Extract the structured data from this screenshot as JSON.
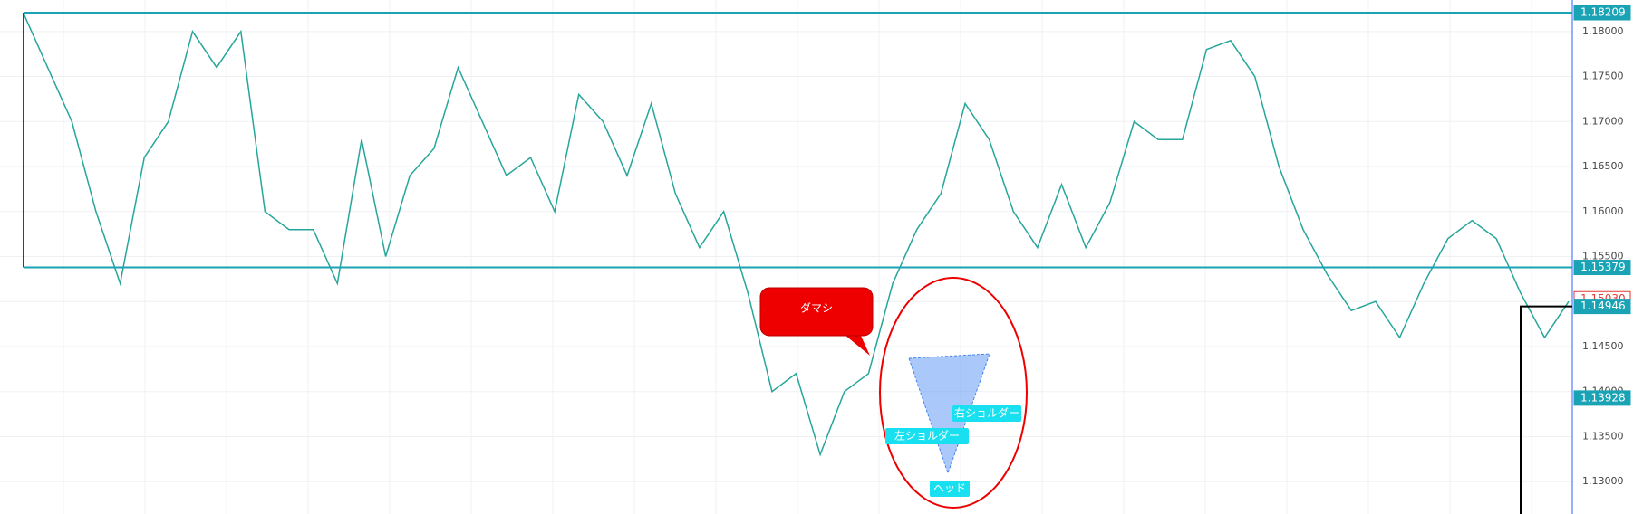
{
  "chart_data": {
    "type": "line",
    "values": [
      1.182,
      1.176,
      1.17,
      1.16,
      1.152,
      1.166,
      1.17,
      1.18,
      1.176,
      1.18,
      1.16,
      1.158,
      1.158,
      1.152,
      1.168,
      1.155,
      1.164,
      1.167,
      1.176,
      1.17,
      1.164,
      1.166,
      1.16,
      1.173,
      1.17,
      1.164,
      1.172,
      1.162,
      1.156,
      1.16,
      1.151,
      1.14,
      1.142,
      1.133,
      1.14,
      1.142,
      1.152,
      1.158,
      1.162,
      1.172,
      1.168,
      1.16,
      1.156,
      1.163,
      1.156,
      1.161,
      1.17,
      1.168,
      1.168,
      1.178,
      1.179,
      1.175,
      1.165,
      1.158,
      1.153,
      1.149,
      1.15,
      1.146,
      1.152,
      1.157,
      1.159,
      1.157,
      1.151,
      1.146,
      1.15
    ],
    "color": "#26a69a",
    "ylim": [
      1.1264,
      1.1835
    ],
    "yticks": [
      {
        "value": 1.13,
        "label": "1.13000"
      },
      {
        "value": 1.135,
        "label": "1.13500"
      },
      {
        "value": 1.14,
        "label": "1.14000"
      },
      {
        "value": 1.145,
        "label": "1.14500"
      },
      {
        "value": 1.15,
        "label": "1.15000"
      },
      {
        "value": 1.155,
        "label": "1.15500"
      },
      {
        "value": 1.16,
        "label": "1.16000"
      },
      {
        "value": 1.165,
        "label": "1.16500"
      },
      {
        "value": 1.17,
        "label": "1.17000"
      },
      {
        "value": 1.175,
        "label": "1.17500"
      },
      {
        "value": 1.18,
        "label": "1.18000"
      }
    ],
    "grid": true,
    "price_levels": [
      {
        "value": 1.18209,
        "label": "1.18209",
        "color": "#1aa3b5",
        "line": true
      },
      {
        "value": 1.15379,
        "label": "1.15379",
        "color": "#1aa3b5",
        "line": true
      },
      {
        "value": 1.1503,
        "label": "1.15030",
        "color": "#e53935",
        "line": false
      },
      {
        "value": 1.14946,
        "label": "1.14946",
        "color": "#1aa3b5",
        "line": false
      },
      {
        "value": 1.13928,
        "label": "1.13928",
        "color": "#1aa3b5",
        "line": false
      }
    ],
    "annotations": [
      "ダマシ",
      "左ショルダー",
      "ヘッド",
      "右ショルダー"
    ]
  }
}
